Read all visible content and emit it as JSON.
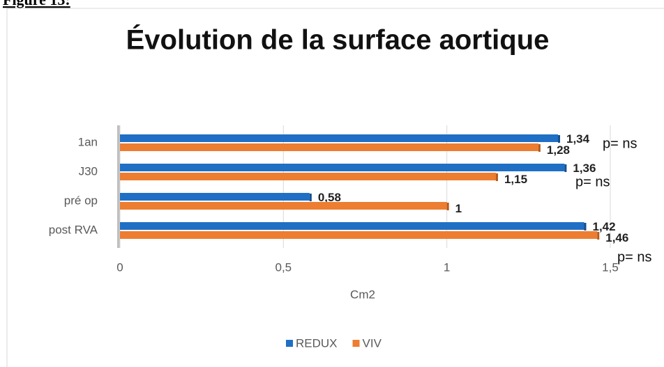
{
  "header": "Figure 13:",
  "chart_data": {
    "type": "barh",
    "title": "Évolution de la surface aortique",
    "xlabel": "Cm2",
    "categories": [
      "1an",
      "J30",
      "pré op",
      "post RVA"
    ],
    "series": [
      {
        "name": "REDUX",
        "color": "#1f6fc5",
        "values": [
          1.34,
          1.36,
          0.58,
          1.42
        ],
        "value_labels": [
          "1,34",
          "1,36",
          "0,58",
          "1,42"
        ]
      },
      {
        "name": "VIV",
        "color": "#ed7d31",
        "values": [
          1.28,
          1.15,
          1,
          1.46
        ],
        "value_labels": [
          "1,28",
          "1,15",
          "1",
          "1,46"
        ]
      }
    ],
    "xlim": [
      0,
      1.5
    ],
    "xticks": [
      0,
      {
        "value": 0.5,
        "label": "0,5"
      },
      1,
      {
        "value": 1.5,
        "label": "1,5"
      }
    ],
    "grid": true,
    "legend": "bottom",
    "annotations": [
      "p= ns",
      "p= ns",
      "p= ns"
    ]
  }
}
